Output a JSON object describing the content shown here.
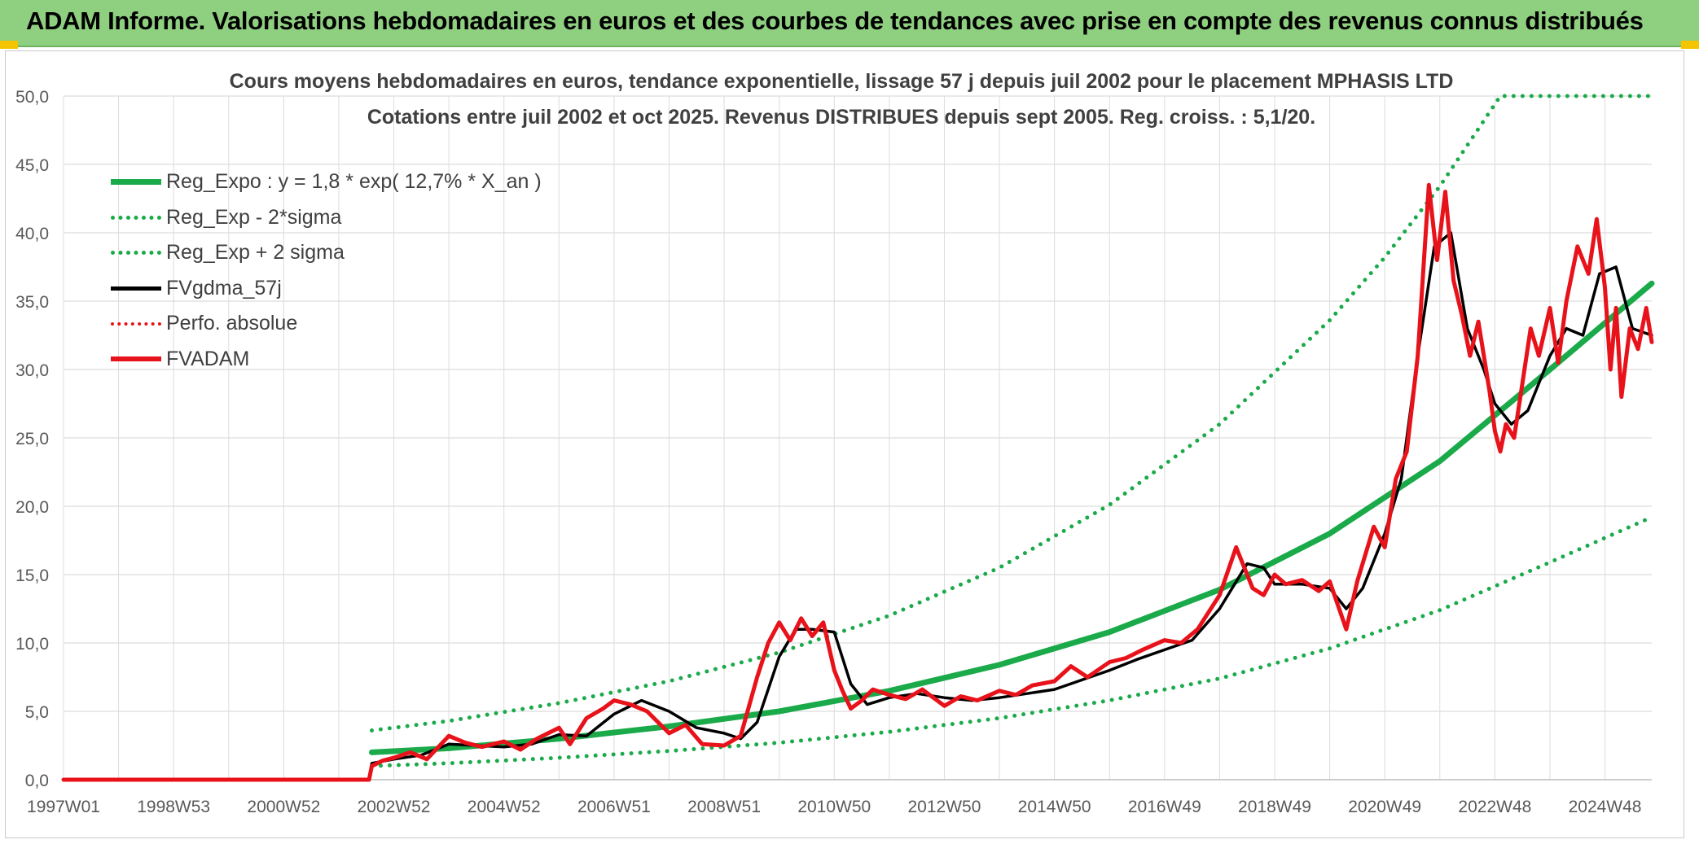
{
  "header": {
    "title": "ADAM Informe. Valorisations hebdomadaires en euros et des courbes de tendances avec prise en compte des revenus connus distribués"
  },
  "chart_data": {
    "type": "line",
    "title": "Cours moyens hebdomadaires en euros, tendance exponentielle, lissage 57 j depuis juil 2002 pour le placement MPHASIS LTD",
    "subtitle": "Cotations entre juil 2002 et oct 2025. Revenus DISTRIBUES depuis sept 2005. Reg. croiss. : 5,1/20.",
    "xlabel": "",
    "ylabel": "",
    "ylim": [
      0,
      50
    ],
    "xlim": [
      1997.0,
      2025.85
    ],
    "grid": true,
    "legend_position": "top-left",
    "y_ticks": [
      "0,0",
      "5,0",
      "10,0",
      "15,0",
      "20,0",
      "25,0",
      "30,0",
      "35,0",
      "40,0",
      "45,0",
      "50,0"
    ],
    "x_ticks": [
      {
        "label": "1997W01",
        "x": 1997.0
      },
      {
        "label": "1998W53",
        "x": 1999.0
      },
      {
        "label": "2000W52",
        "x": 2001.0
      },
      {
        "label": "2002W52",
        "x": 2003.0
      },
      {
        "label": "2004W52",
        "x": 2005.0
      },
      {
        "label": "2006W51",
        "x": 2007.0
      },
      {
        "label": "2008W51",
        "x": 2009.0
      },
      {
        "label": "2010W50",
        "x": 2011.0
      },
      {
        "label": "2012W50",
        "x": 2013.0
      },
      {
        "label": "2014W50",
        "x": 2015.0
      },
      {
        "label": "2016W49",
        "x": 2017.0
      },
      {
        "label": "2018W49",
        "x": 2019.0
      },
      {
        "label": "2020W49",
        "x": 2021.0
      },
      {
        "label": "2022W48",
        "x": 2023.0
      },
      {
        "label": "2024W48",
        "x": 2025.0
      }
    ],
    "series": [
      {
        "name": "Reg_Expo : y = 1,8 * exp( 12,7% *  X_an )",
        "color": "#1aaa4a",
        "style": "solid",
        "width": 7,
        "x": [
          2002.6,
          2004,
          2006,
          2008,
          2010,
          2012,
          2014,
          2016,
          2018,
          2020,
          2022,
          2024,
          2025.85
        ],
        "values": [
          2.0,
          2.3,
          3.0,
          3.9,
          5.0,
          6.5,
          8.4,
          10.8,
          13.9,
          18.0,
          23.3,
          30.0,
          36.3
        ]
      },
      {
        "name": "Reg_Exp - 2*sigma",
        "color": "#1aaa4a",
        "style": "dotted",
        "width": 5,
        "x": [
          2002.6,
          2004,
          2006,
          2008,
          2010,
          2012,
          2014,
          2016,
          2018,
          2020,
          2022,
          2024,
          2025.85
        ],
        "values": [
          1.0,
          1.2,
          1.6,
          2.1,
          2.7,
          3.5,
          4.5,
          5.8,
          7.4,
          9.6,
          12.4,
          15.9,
          19.2
        ]
      },
      {
        "name": "Reg_Exp + 2 sigma",
        "color": "#1aaa4a",
        "style": "dotted",
        "width": 5,
        "x": [
          2002.6,
          2004,
          2006,
          2008,
          2010,
          2012,
          2014,
          2016,
          2018,
          2020,
          2021,
          2022,
          2023.1,
          2024,
          2025.85
        ],
        "values": [
          3.6,
          4.3,
          5.6,
          7.2,
          9.3,
          12.0,
          15.5,
          20.1,
          26.0,
          33.6,
          38.2,
          43.4,
          50.0,
          50.0,
          50.0
        ]
      },
      {
        "name": "FVgdma_57j",
        "color": "#000000",
        "style": "solid",
        "width": 3.5,
        "x": [
          1997.0,
          2002.55,
          2002.6,
          2003.0,
          2003.5,
          2004.0,
          2004.5,
          2005.0,
          2005.5,
          2006.0,
          2006.5,
          2007.0,
          2007.5,
          2008.0,
          2008.5,
          2009.0,
          2009.3,
          2009.6,
          2010.0,
          2010.3,
          2010.6,
          2011.0,
          2011.3,
          2011.6,
          2012.0,
          2012.5,
          2013.0,
          2013.5,
          2014.0,
          2014.5,
          2015.0,
          2015.5,
          2016.0,
          2016.5,
          2017.0,
          2017.5,
          2018.0,
          2018.5,
          2018.8,
          2019.0,
          2019.5,
          2020.0,
          2020.3,
          2020.6,
          2021.0,
          2021.3,
          2021.6,
          2021.9,
          2022.2,
          2022.5,
          2022.8,
          2023.0,
          2023.3,
          2023.6,
          2024.0,
          2024.3,
          2024.6,
          2024.9,
          2025.2,
          2025.5,
          2025.85
        ],
        "values": [
          0.0,
          0.0,
          1.2,
          1.5,
          1.8,
          2.6,
          2.5,
          2.4,
          2.6,
          3.3,
          3.2,
          4.8,
          5.8,
          5.0,
          3.8,
          3.4,
          3.0,
          4.2,
          9.0,
          11.0,
          11.0,
          10.8,
          7.0,
          5.5,
          6.0,
          6.3,
          6.0,
          5.8,
          6.0,
          6.3,
          6.6,
          7.3,
          8.0,
          8.8,
          9.5,
          10.2,
          12.5,
          15.8,
          15.5,
          14.3,
          14.3,
          14.0,
          12.5,
          14.0,
          18.0,
          22.0,
          31.0,
          39.0,
          40.0,
          33.0,
          30.0,
          27.5,
          26.0,
          27.0,
          31.0,
          33.0,
          32.5,
          37.0,
          37.5,
          33.0,
          32.5
        ]
      },
      {
        "name": "Perfo. absolue",
        "color": "#e8121a",
        "style": "dotted",
        "width": 3,
        "x": [],
        "values": []
      },
      {
        "name": "FVADAM",
        "color": "#e8121a",
        "style": "solid",
        "width": 5,
        "x": [
          1997.0,
          2002.55,
          2002.6,
          2002.8,
          2003.0,
          2003.3,
          2003.6,
          2004.0,
          2004.3,
          2004.6,
          2005.0,
          2005.3,
          2005.6,
          2006.0,
          2006.2,
          2006.5,
          2006.8,
          2007.0,
          2007.3,
          2007.6,
          2008.0,
          2008.3,
          2008.6,
          2009.0,
          2009.3,
          2009.6,
          2009.8,
          2010.0,
          2010.2,
          2010.4,
          2010.6,
          2010.8,
          2011.0,
          2011.15,
          2011.3,
          2011.5,
          2011.7,
          2012.0,
          2012.3,
          2012.6,
          2013.0,
          2013.3,
          2013.6,
          2014.0,
          2014.3,
          2014.6,
          2015.0,
          2015.3,
          2015.6,
          2016.0,
          2016.3,
          2016.6,
          2017.0,
          2017.3,
          2017.6,
          2018.0,
          2018.3,
          2018.6,
          2018.8,
          2019.0,
          2019.2,
          2019.5,
          2019.8,
          2020.0,
          2020.3,
          2020.5,
          2020.8,
          2021.0,
          2021.2,
          2021.4,
          2021.6,
          2021.8,
          2021.95,
          2022.1,
          2022.25,
          2022.4,
          2022.55,
          2022.7,
          2022.9,
          2023.0,
          2023.1,
          2023.2,
          2023.35,
          2023.5,
          2023.65,
          2023.8,
          2024.0,
          2024.15,
          2024.3,
          2024.5,
          2024.7,
          2024.85,
          2025.0,
          2025.1,
          2025.2,
          2025.3,
          2025.45,
          2025.6,
          2025.75,
          2025.85
        ],
        "values": [
          0.0,
          0.0,
          1.0,
          1.4,
          1.6,
          2.0,
          1.5,
          3.2,
          2.7,
          2.4,
          2.8,
          2.2,
          3.0,
          3.8,
          2.6,
          4.5,
          5.2,
          5.8,
          5.5,
          5.0,
          3.4,
          4.0,
          2.6,
          2.5,
          3.2,
          7.5,
          10.0,
          11.5,
          10.2,
          11.8,
          10.5,
          11.5,
          8.0,
          6.5,
          5.2,
          5.8,
          6.6,
          6.2,
          5.9,
          6.6,
          5.4,
          6.1,
          5.8,
          6.5,
          6.2,
          6.9,
          7.2,
          8.3,
          7.5,
          8.6,
          8.9,
          9.5,
          10.2,
          10.0,
          11.0,
          13.5,
          17.0,
          14.0,
          13.5,
          15.0,
          14.3,
          14.6,
          13.8,
          14.5,
          11.0,
          14.5,
          18.5,
          17.0,
          22.0,
          24.0,
          31.0,
          43.5,
          38.0,
          43.0,
          36.5,
          34.0,
          31.0,
          33.5,
          28.5,
          25.5,
          24.0,
          26.0,
          25.0,
          29.0,
          33.0,
          31.0,
          34.5,
          30.5,
          35.0,
          39.0,
          37.0,
          41.0,
          36.0,
          30.0,
          34.5,
          28.0,
          33.0,
          31.5,
          34.5,
          32.0
        ]
      }
    ]
  }
}
